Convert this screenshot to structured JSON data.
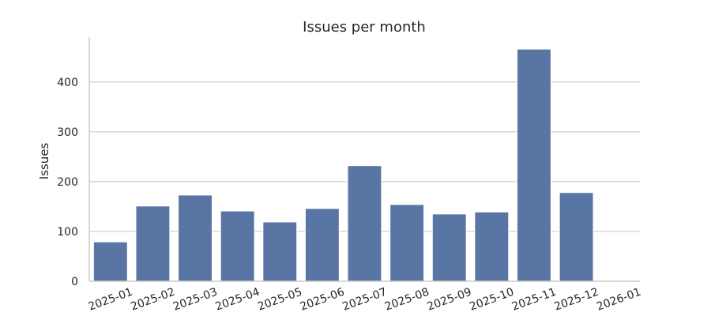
{
  "chart_data": {
    "type": "bar",
    "title": "Issues per month",
    "xlabel": "",
    "ylabel": "Issues",
    "categories": [
      "2025-01",
      "2025-02",
      "2025-03",
      "2025-04",
      "2025-05",
      "2025-06",
      "2025-07",
      "2025-08",
      "2025-09",
      "2025-10",
      "2025-11",
      "2025-12",
      "2026-01"
    ],
    "values": [
      79,
      151,
      173,
      141,
      119,
      146,
      232,
      154,
      135,
      139,
      466,
      178,
      0
    ],
    "ylim": [
      0,
      490
    ],
    "yticks": [
      0,
      100,
      200,
      300,
      400
    ],
    "grid": "horizontal",
    "colors": {
      "bar": "#5875a4",
      "grid": "#cccccc",
      "text": "#262626"
    }
  }
}
